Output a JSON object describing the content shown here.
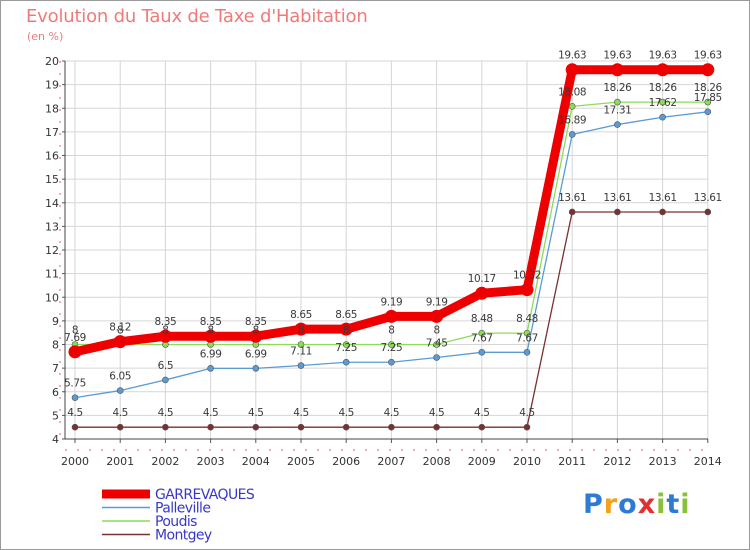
{
  "chart_data": {
    "type": "line",
    "title": "Evolution du Taux de Taxe d'Habitation",
    "subtitle": "(en %)",
    "xlabel": "",
    "ylabel": "(en %)",
    "ylim": [
      4,
      20
    ],
    "yticks": [
      "4",
      "5",
      "6",
      "7",
      "8",
      "9",
      "10",
      "11",
      "12",
      "13",
      "14",
      "15",
      "16",
      "17",
      "18",
      "19",
      "20"
    ],
    "categories": [
      "2000",
      "2001",
      "2002",
      "2003",
      "2004",
      "2005",
      "2006",
      "2007",
      "2008",
      "2009",
      "2010",
      "2011",
      "2012",
      "2013",
      "2014"
    ],
    "grid": true,
    "legend_position": "bottom-left",
    "series": [
      {
        "name": "GARREVAQUES",
        "color": "#ee0000",
        "values": [
          7.69,
          8.12,
          8.35,
          8.35,
          8.35,
          8.65,
          8.65,
          9.19,
          9.19,
          10.17,
          10.32,
          19.63,
          19.63,
          19.63,
          19.63
        ],
        "labels": [
          "7.69",
          "8.12",
          "8.35",
          "8.35",
          "8.35",
          "8.65",
          "8.65",
          "9.19",
          "9.19",
          "10.17",
          "10.32",
          "19.63",
          "19.63",
          "19.63",
          "19.63"
        ]
      },
      {
        "name": "Palleville",
        "color": "#5b9bd5",
        "values": [
          5.75,
          6.05,
          6.5,
          6.99,
          6.99,
          7.11,
          7.25,
          7.25,
          7.45,
          7.67,
          7.67,
          16.89,
          17.31,
          17.62,
          17.85
        ],
        "labels": [
          "5.75",
          "6.05",
          "6.5",
          "6.99",
          "6.99",
          "7.11",
          "7.25",
          "7.25",
          "7.45",
          "7.67",
          "7.67",
          "16.89",
          "17.31",
          "17.62",
          "17.85"
        ]
      },
      {
        "name": "Poudis",
        "color": "#8bdc58",
        "values": [
          8,
          8,
          8,
          8,
          8,
          8,
          8,
          8,
          8,
          8.48,
          8.48,
          18.08,
          18.26,
          18.26,
          18.26
        ],
        "labels": [
          "8",
          "8",
          "8",
          "8",
          "8",
          "8",
          "8",
          "8",
          "8",
          "8.48",
          "8.48",
          "18.08",
          "18.26",
          "18.26",
          "18.26"
        ]
      },
      {
        "name": "Montgey",
        "color": "#7a3030",
        "values": [
          4.5,
          4.5,
          4.5,
          4.5,
          4.5,
          4.5,
          4.5,
          4.5,
          4.5,
          4.5,
          4.5,
          13.61,
          13.61,
          13.61,
          13.61
        ],
        "labels": [
          "4.5",
          "4.5",
          "4.5",
          "4.5",
          "4.5",
          "4.5",
          "4.5",
          "4.5",
          "4.5",
          "4.5",
          "4.5",
          "13.61",
          "13.61",
          "13.61",
          "13.61"
        ]
      }
    ]
  },
  "logo": {
    "text": "Proxiti",
    "colors": [
      "#2e7bd6",
      "#f5a11a",
      "#2e7bd6",
      "#e03030",
      "#8ac03a",
      "#2e7bd6",
      "#8ac03a"
    ]
  }
}
